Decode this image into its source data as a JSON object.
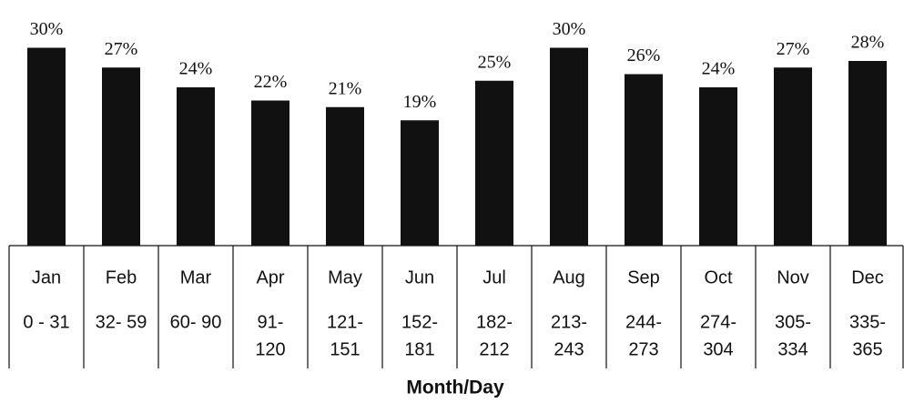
{
  "chart_data": {
    "type": "bar",
    "x_label": "Month/Day",
    "categories": [
      "Jan",
      "Feb",
      "Mar",
      "Apr",
      "May",
      "Jun",
      "Jul",
      "Aug",
      "Sep",
      "Oct",
      "Nov",
      "Dec"
    ],
    "day_ranges": [
      [
        "0 - 31"
      ],
      [
        "32- 59"
      ],
      [
        "60- 90"
      ],
      [
        "91-",
        "120"
      ],
      [
        "121-",
        "151"
      ],
      [
        "152-",
        "181"
      ],
      [
        "182-",
        "212"
      ],
      [
        "213-",
        "243"
      ],
      [
        "244-",
        "273"
      ],
      [
        "274-",
        "304"
      ],
      [
        "305-",
        "334"
      ],
      [
        "335-",
        "365"
      ]
    ],
    "values": [
      30,
      27,
      24,
      22,
      21,
      19,
      25,
      30,
      26,
      24,
      27,
      28
    ],
    "value_labels": [
      "30%",
      "27%",
      "24%",
      "22%",
      "21%",
      "19%",
      "25%",
      "30%",
      "26%",
      "24%",
      "27%",
      "28%"
    ],
    "color": "#111111"
  }
}
